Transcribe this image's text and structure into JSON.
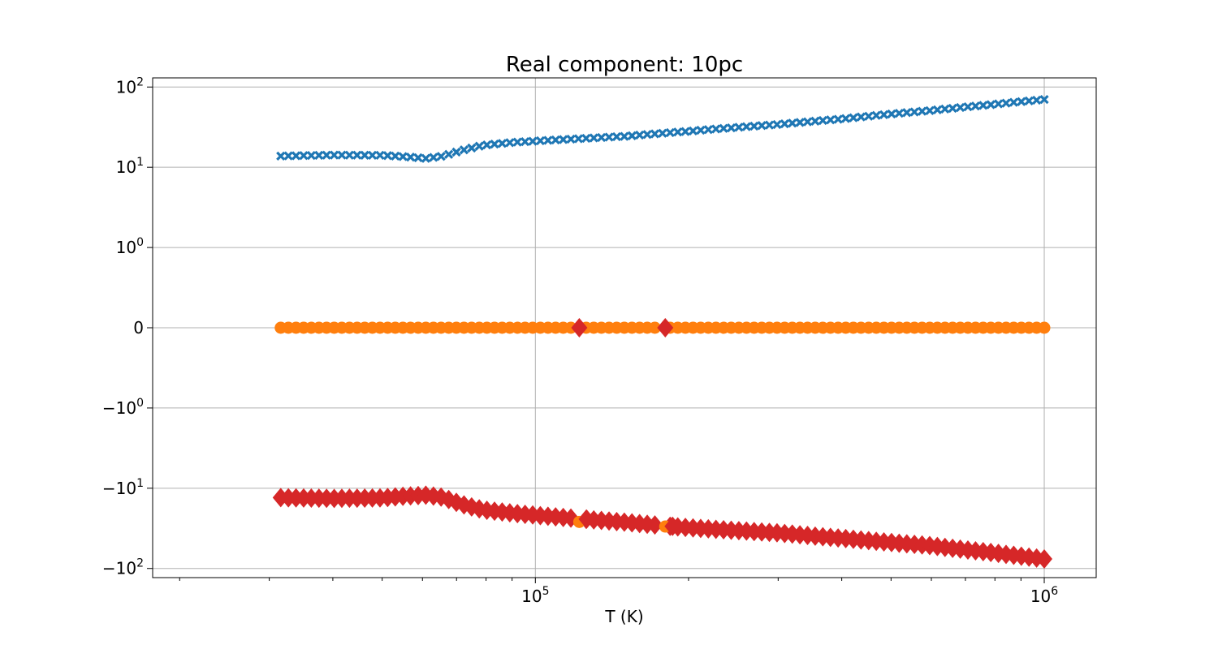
{
  "chart_data": {
    "type": "scatter",
    "title": "Real component: 10pc",
    "xlabel": "T (K)",
    "ylabel": "",
    "xscale": "log",
    "yscale": "symlog",
    "symlog_linthresh": 1,
    "xlim": [
      17700,
      1265000
    ],
    "ylim": [
      -130,
      130
    ],
    "grid": true,
    "x_ticks": [
      {
        "value": 100000,
        "base": "10",
        "exp": "5"
      },
      {
        "value": 1000000,
        "base": "10",
        "exp": "6"
      }
    ],
    "x_minor_ticks": [
      20000,
      30000,
      40000,
      50000,
      60000,
      70000,
      80000,
      90000,
      200000,
      300000,
      400000,
      500000,
      600000,
      700000,
      800000,
      900000
    ],
    "y_ticks": [
      {
        "value": 100,
        "base": "10",
        "exp": "2",
        "sign": ""
      },
      {
        "value": 10,
        "base": "10",
        "exp": "1",
        "sign": ""
      },
      {
        "value": 1,
        "base": "10",
        "exp": "0",
        "sign": ""
      },
      {
        "value": 0,
        "base": "0",
        "exp": "",
        "sign": ""
      },
      {
        "value": -1,
        "base": "10",
        "exp": "0",
        "sign": "−"
      },
      {
        "value": -10,
        "base": "10",
        "exp": "1",
        "sign": "−"
      },
      {
        "value": -100,
        "base": "10",
        "exp": "2",
        "sign": "−"
      }
    ],
    "series": [
      {
        "color": "#1f77b4",
        "marker": "x",
        "profile": [
          [
            31600,
            13.8
          ],
          [
            40000,
            14.2
          ],
          [
            50000,
            14.1
          ],
          [
            55000,
            13.6
          ],
          [
            61000,
            12.9
          ],
          [
            66000,
            13.8
          ],
          [
            72000,
            16.3
          ],
          [
            79000,
            18.8
          ],
          [
            90000,
            20.4
          ],
          [
            100000,
            21.2
          ],
          [
            150000,
            24.3
          ],
          [
            200000,
            28.1
          ],
          [
            300000,
            34.2
          ],
          [
            400000,
            40.0
          ],
          [
            600000,
            51.0
          ],
          [
            800000,
            61.0
          ],
          [
            1000000,
            70.0
          ]
        ]
      },
      {
        "color": "#ff7f0e",
        "marker": "circle",
        "constant": 0,
        "nonzero_points": [
          [
            122000,
            -26.3
          ],
          [
            180000,
            -30.0
          ]
        ]
      },
      {
        "color": "#d62728",
        "marker": "diamond",
        "profile": [
          [
            31600,
            -13.1
          ],
          [
            40000,
            -13.4
          ],
          [
            50000,
            -13.2
          ],
          [
            55000,
            -12.6
          ],
          [
            61000,
            -12.2
          ],
          [
            66000,
            -13.0
          ],
          [
            72000,
            -16.0
          ],
          [
            79000,
            -18.6
          ],
          [
            90000,
            -20.4
          ],
          [
            100000,
            -21.7
          ],
          [
            120000,
            -23.8
          ],
          [
            150000,
            -26.5
          ],
          [
            180000,
            -29.5
          ],
          [
            200000,
            -31.0
          ],
          [
            300000,
            -36.0
          ],
          [
            400000,
            -42.0
          ],
          [
            600000,
            -52.0
          ],
          [
            800000,
            -64.0
          ],
          [
            1000000,
            -76.0
          ]
        ],
        "zero_points": [
          122000,
          180000
        ]
      }
    ]
  }
}
